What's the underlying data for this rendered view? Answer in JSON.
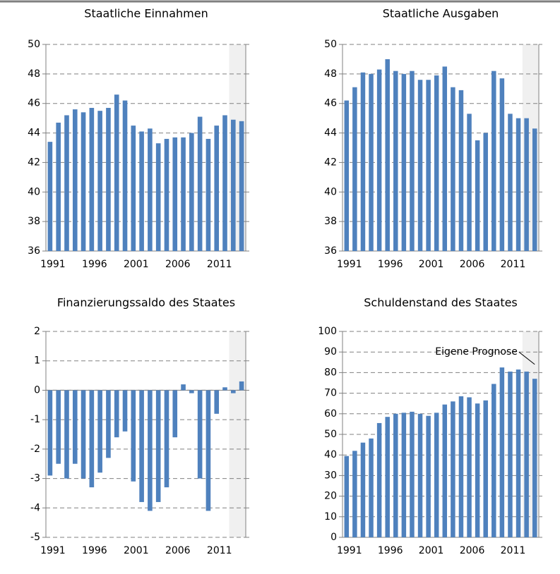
{
  "chart_data": [
    {
      "type": "bar",
      "title": "Staatliche Einnahmen",
      "categories": [
        "1991",
        null,
        null,
        null,
        null,
        "1996",
        null,
        null,
        null,
        null,
        "2001",
        null,
        null,
        null,
        null,
        "2006",
        null,
        null,
        null,
        null,
        "2011",
        null,
        null,
        null
      ],
      "values": [
        43.4,
        44.7,
        45.2,
        45.6,
        45.4,
        45.7,
        45.5,
        45.7,
        46.6,
        46.2,
        44.5,
        44.1,
        44.3,
        43.3,
        43.6,
        43.7,
        43.7,
        44.0,
        45.1,
        43.6,
        44.5,
        45.2,
        44.9,
        44.8
      ],
      "color": "#4f81bd",
      "ylim": [
        36,
        50
      ],
      "yticks": [
        36,
        38,
        40,
        42,
        44,
        46,
        48,
        50
      ],
      "grid": true
    },
    {
      "type": "bar",
      "title": "Staatliche Ausgaben",
      "categories": [
        "1991",
        null,
        null,
        null,
        null,
        "1996",
        null,
        null,
        null,
        null,
        "2001",
        null,
        null,
        null,
        null,
        "2006",
        null,
        null,
        null,
        null,
        "2011",
        null,
        null,
        null
      ],
      "values": [
        46.2,
        47.1,
        48.1,
        48.0,
        48.3,
        49.0,
        48.2,
        48.0,
        48.2,
        47.6,
        47.6,
        47.9,
        48.5,
        47.1,
        46.9,
        45.3,
        43.5,
        44.0,
        48.2,
        47.7,
        45.3,
        45.0,
        45.0,
        44.3
      ],
      "color": "#4f81bd",
      "ylim": [
        36,
        50
      ],
      "yticks": [
        36,
        38,
        40,
        42,
        44,
        46,
        48,
        50
      ],
      "grid": true
    },
    {
      "type": "bar",
      "title": "Finanzierungssaldo des Staates",
      "categories": [
        "1991",
        null,
        null,
        null,
        null,
        "1996",
        null,
        null,
        null,
        null,
        "2001",
        null,
        null,
        null,
        null,
        "2006",
        null,
        null,
        null,
        null,
        "2011",
        null,
        null,
        null
      ],
      "values": [
        -2.9,
        -2.5,
        -3.0,
        -2.5,
        -3.0,
        -3.3,
        -2.8,
        -2.3,
        -1.6,
        -1.4,
        -3.1,
        -3.8,
        -4.1,
        -3.8,
        -3.3,
        -1.6,
        0.2,
        -0.1,
        -3.0,
        -4.1,
        -0.8,
        0.1,
        -0.1,
        0.3
      ],
      "color": "#4f81bd",
      "ylim": [
        -5,
        2
      ],
      "yticks": [
        -5,
        -4,
        -3,
        -2,
        -1,
        0,
        1,
        2
      ],
      "grid": true
    },
    {
      "type": "bar",
      "title": "Schuldenstand des Staates",
      "categories": [
        "1991",
        null,
        null,
        null,
        null,
        "1996",
        null,
        null,
        null,
        null,
        "2001",
        null,
        null,
        null,
        null,
        "2006",
        null,
        null,
        null,
        null,
        "2011",
        null,
        null,
        null
      ],
      "values": [
        39.5,
        42,
        46,
        48,
        55.5,
        58.5,
        60,
        60.5,
        61,
        60,
        59,
        60.5,
        64.5,
        66,
        68.5,
        68,
        65,
        66.5,
        74.5,
        82.5,
        80.5,
        81.5,
        80.5,
        77
      ],
      "color": "#4f81bd",
      "ylim": [
        0,
        100
      ],
      "yticks": [
        0,
        10,
        20,
        30,
        40,
        50,
        60,
        70,
        80,
        90,
        100
      ],
      "grid": true,
      "annotation": "Eigene Prognose"
    }
  ]
}
